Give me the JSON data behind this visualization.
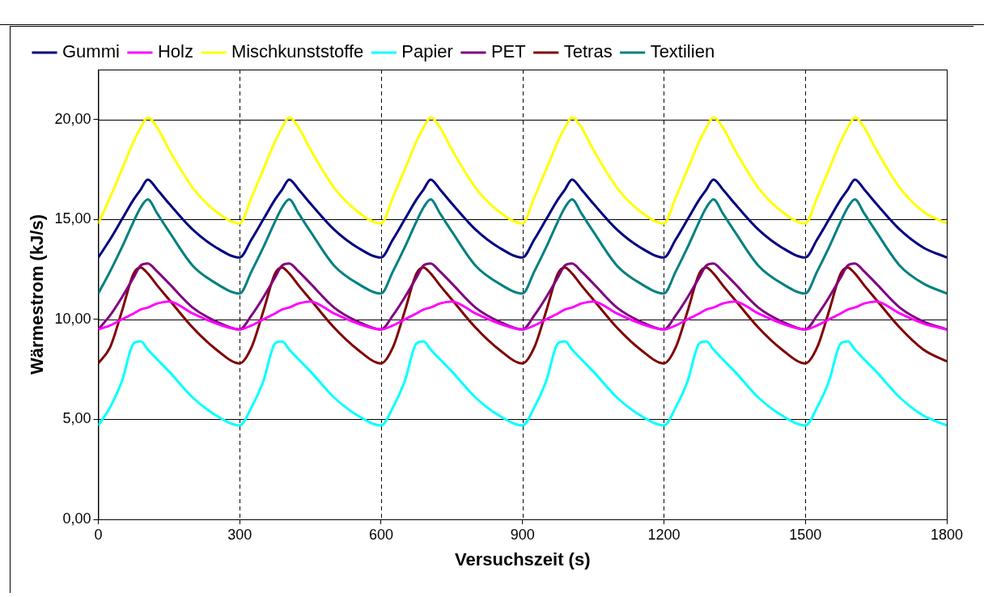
{
  "chart_data": {
    "type": "line",
    "xlabel": "Versuchszeit (s)",
    "ylabel": "Wärmestrom (kJ/s)",
    "x": [
      0,
      25,
      50,
      75,
      90,
      105,
      125,
      150,
      200,
      250,
      300,
      325,
      350,
      375,
      390,
      405,
      425,
      450,
      500,
      550,
      600,
      625,
      650,
      675,
      690,
      705,
      725,
      750,
      800,
      850,
      900,
      925,
      950,
      975,
      990,
      1005,
      1025,
      1050,
      1100,
      1150,
      1200,
      1225,
      1250,
      1275,
      1290,
      1305,
      1325,
      1350,
      1400,
      1450,
      1500,
      1525,
      1550,
      1575,
      1590,
      1605,
      1625,
      1650,
      1700,
      1750,
      1800
    ],
    "series": [
      {
        "name": "Gummi",
        "color": "#000080",
        "values": [
          13.1,
          14.0,
          15.0,
          16.0,
          16.5,
          17.0,
          16.5,
          15.8,
          14.5,
          13.6,
          13.1,
          14.0,
          15.0,
          16.0,
          16.5,
          17.0,
          16.5,
          15.8,
          14.5,
          13.6,
          13.1,
          14.0,
          15.0,
          16.0,
          16.5,
          17.0,
          16.5,
          15.8,
          14.5,
          13.6,
          13.1,
          14.0,
          15.0,
          16.0,
          16.5,
          17.0,
          16.5,
          15.8,
          14.5,
          13.6,
          13.1,
          14.0,
          15.0,
          16.0,
          16.5,
          17.0,
          16.5,
          15.8,
          14.5,
          13.6,
          13.1,
          14.0,
          15.0,
          16.0,
          16.5,
          17.0,
          16.5,
          15.8,
          14.5,
          13.6,
          13.1
        ]
      },
      {
        "name": "Holz",
        "color": "#ff00ff",
        "values": [
          9.5,
          9.7,
          10.0,
          10.3,
          10.5,
          10.6,
          10.8,
          10.9,
          10.3,
          9.8,
          9.5,
          9.7,
          10.0,
          10.3,
          10.5,
          10.6,
          10.8,
          10.9,
          10.3,
          9.8,
          9.5,
          9.7,
          10.0,
          10.3,
          10.5,
          10.6,
          10.8,
          10.9,
          10.3,
          9.8,
          9.5,
          9.7,
          10.0,
          10.3,
          10.5,
          10.6,
          10.8,
          10.9,
          10.3,
          9.8,
          9.5,
          9.7,
          10.0,
          10.3,
          10.5,
          10.6,
          10.8,
          10.9,
          10.3,
          9.8,
          9.5,
          9.7,
          10.0,
          10.3,
          10.5,
          10.6,
          10.8,
          10.9,
          10.3,
          9.8,
          9.5
        ]
      },
      {
        "name": "Mischkunststoffe",
        "color": "#ffff00",
        "values": [
          14.8,
          16.1,
          17.5,
          18.9,
          19.6,
          20.1,
          19.6,
          18.5,
          16.6,
          15.4,
          14.8,
          16.1,
          17.5,
          18.9,
          19.6,
          20.1,
          19.6,
          18.5,
          16.6,
          15.4,
          14.8,
          16.1,
          17.5,
          18.9,
          19.6,
          20.1,
          19.6,
          18.5,
          16.6,
          15.4,
          14.8,
          16.1,
          17.5,
          18.9,
          19.6,
          20.1,
          19.6,
          18.5,
          16.6,
          15.4,
          14.8,
          16.1,
          17.5,
          18.9,
          19.6,
          20.1,
          19.6,
          18.5,
          16.6,
          15.4,
          14.8,
          16.1,
          17.5,
          18.9,
          19.6,
          20.1,
          19.6,
          18.5,
          16.6,
          15.4,
          14.8
        ]
      },
      {
        "name": "Papier",
        "color": "#00ffff",
        "values": [
          4.7,
          5.6,
          6.9,
          8.8,
          8.9,
          8.5,
          8.0,
          7.4,
          6.1,
          5.2,
          4.7,
          5.6,
          6.9,
          8.8,
          8.9,
          8.5,
          8.0,
          7.4,
          6.1,
          5.2,
          4.7,
          5.6,
          6.9,
          8.8,
          8.9,
          8.5,
          8.0,
          7.4,
          6.1,
          5.2,
          4.7,
          5.6,
          6.9,
          8.8,
          8.9,
          8.5,
          8.0,
          7.4,
          6.1,
          5.2,
          4.7,
          5.6,
          6.9,
          8.8,
          8.9,
          8.5,
          8.0,
          7.4,
          6.1,
          5.2,
          4.7,
          5.6,
          6.9,
          8.8,
          8.9,
          8.5,
          8.0,
          7.4,
          6.1,
          5.2,
          4.7
        ]
      },
      {
        "name": "PET",
        "color": "#800080",
        "values": [
          9.5,
          10.2,
          11.1,
          12.1,
          12.7,
          12.8,
          12.4,
          11.8,
          10.6,
          9.9,
          9.5,
          10.2,
          11.1,
          12.1,
          12.7,
          12.8,
          12.4,
          11.8,
          10.6,
          9.9,
          9.5,
          10.2,
          11.1,
          12.1,
          12.7,
          12.8,
          12.4,
          11.8,
          10.6,
          9.9,
          9.5,
          10.2,
          11.1,
          12.1,
          12.7,
          12.8,
          12.4,
          11.8,
          10.6,
          9.9,
          9.5,
          10.2,
          11.1,
          12.1,
          12.7,
          12.8,
          12.4,
          11.8,
          10.6,
          9.9,
          9.5,
          10.2,
          11.1,
          12.1,
          12.7,
          12.8,
          12.4,
          11.8,
          10.6,
          9.9,
          9.5
        ]
      },
      {
        "name": "Tetras",
        "color": "#800000",
        "values": [
          7.8,
          8.6,
          10.4,
          12.3,
          12.6,
          12.3,
          11.7,
          11.0,
          9.6,
          8.5,
          7.8,
          8.6,
          10.4,
          12.3,
          12.6,
          12.3,
          11.7,
          11.0,
          9.6,
          8.5,
          7.8,
          8.6,
          10.4,
          12.3,
          12.6,
          12.3,
          11.7,
          11.0,
          9.6,
          8.5,
          7.8,
          8.6,
          10.4,
          12.3,
          12.6,
          12.3,
          11.7,
          11.0,
          9.6,
          8.5,
          7.8,
          8.6,
          10.4,
          12.3,
          12.6,
          12.3,
          11.7,
          11.0,
          9.6,
          8.5,
          7.8,
          8.6,
          10.4,
          12.3,
          12.6,
          12.3,
          11.7,
          11.0,
          9.6,
          8.5,
          7.9
        ]
      },
      {
        "name": "Textilien",
        "color": "#008080",
        "values": [
          11.3,
          12.4,
          13.6,
          14.9,
          15.6,
          16.0,
          15.3,
          14.4,
          12.7,
          11.8,
          11.3,
          12.4,
          13.6,
          14.9,
          15.6,
          16.0,
          15.3,
          14.4,
          12.7,
          11.8,
          11.3,
          12.4,
          13.6,
          14.9,
          15.6,
          16.0,
          15.3,
          14.4,
          12.7,
          11.8,
          11.3,
          12.4,
          13.6,
          14.9,
          15.6,
          16.0,
          15.3,
          14.4,
          12.7,
          11.8,
          11.3,
          12.4,
          13.6,
          14.9,
          15.6,
          16.0,
          15.3,
          14.4,
          12.7,
          11.8,
          11.3,
          12.4,
          13.6,
          14.9,
          15.6,
          16.0,
          15.3,
          14.4,
          12.7,
          11.8,
          11.3
        ]
      }
    ],
    "xlim": [
      0,
      1800
    ],
    "xticks": [
      0,
      300,
      600,
      900,
      1200,
      1500,
      1800
    ],
    "ylim": [
      0,
      22.5
    ],
    "yticks": [
      {
        "value": 0,
        "label": "0,00"
      },
      {
        "value": 5,
        "label": "5,00"
      },
      {
        "value": 10,
        "label": "10,00"
      },
      {
        "value": 15,
        "label": "15,00"
      },
      {
        "value": 20,
        "label": "20,00"
      }
    ],
    "grid": true,
    "legend": "top",
    "marker": "none",
    "line_style": "solid"
  }
}
